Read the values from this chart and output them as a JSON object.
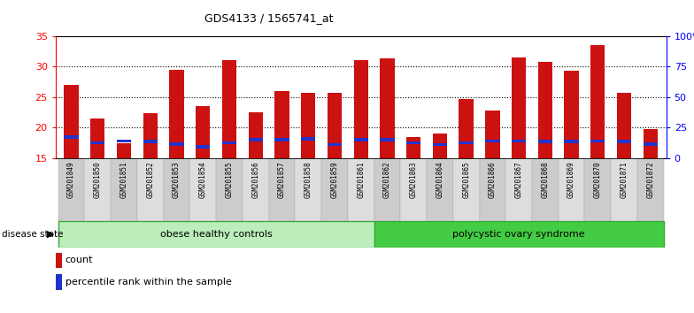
{
  "title": "GDS4133 / 1565741_at",
  "samples": [
    "GSM201849",
    "GSM201850",
    "GSM201851",
    "GSM201852",
    "GSM201853",
    "GSM201854",
    "GSM201855",
    "GSM201856",
    "GSM201857",
    "GSM201858",
    "GSM201859",
    "GSM201861",
    "GSM201862",
    "GSM201863",
    "GSM201864",
    "GSM201865",
    "GSM201866",
    "GSM201867",
    "GSM201868",
    "GSM201869",
    "GSM201870",
    "GSM201871",
    "GSM201872"
  ],
  "counts": [
    27.0,
    21.5,
    17.5,
    22.3,
    29.5,
    23.5,
    31.0,
    22.5,
    26.0,
    25.7,
    25.7,
    31.0,
    31.3,
    18.5,
    19.0,
    24.7,
    22.8,
    31.5,
    30.7,
    29.3,
    33.5,
    25.7,
    19.7
  ],
  "percentile_values": [
    18.5,
    17.5,
    17.8,
    17.7,
    17.3,
    16.8,
    17.5,
    18.0,
    18.0,
    18.2,
    17.2,
    18.0,
    18.0,
    17.5,
    17.2,
    17.5,
    17.8,
    17.8,
    17.7,
    17.7,
    17.8,
    17.7,
    17.3
  ],
  "group1_label": "obese healthy controls",
  "group2_label": "polycystic ovary syndrome",
  "group1_count": 12,
  "group2_count": 11,
  "ylim_left": [
    15,
    35
  ],
  "yticks_left": [
    15,
    20,
    25,
    30,
    35
  ],
  "ylim_right": [
    0,
    100
  ],
  "yticks_right": [
    0,
    25,
    50,
    75,
    100
  ],
  "bar_color": "#cc1111",
  "percentile_color": "#2233cc",
  "bar_width": 0.55,
  "bg_color": "#ffffff",
  "plot_bg": "#ffffff",
  "disease_state_label": "disease state",
  "legend_count_label": "count",
  "legend_percentile_label": "percentile rank within the sample",
  "group1_bg": "#bbeebb",
  "group2_bg": "#44cc44",
  "col_bg_odd": "#cccccc",
  "col_bg_even": "#dddddd",
  "title_fontsize": 9
}
